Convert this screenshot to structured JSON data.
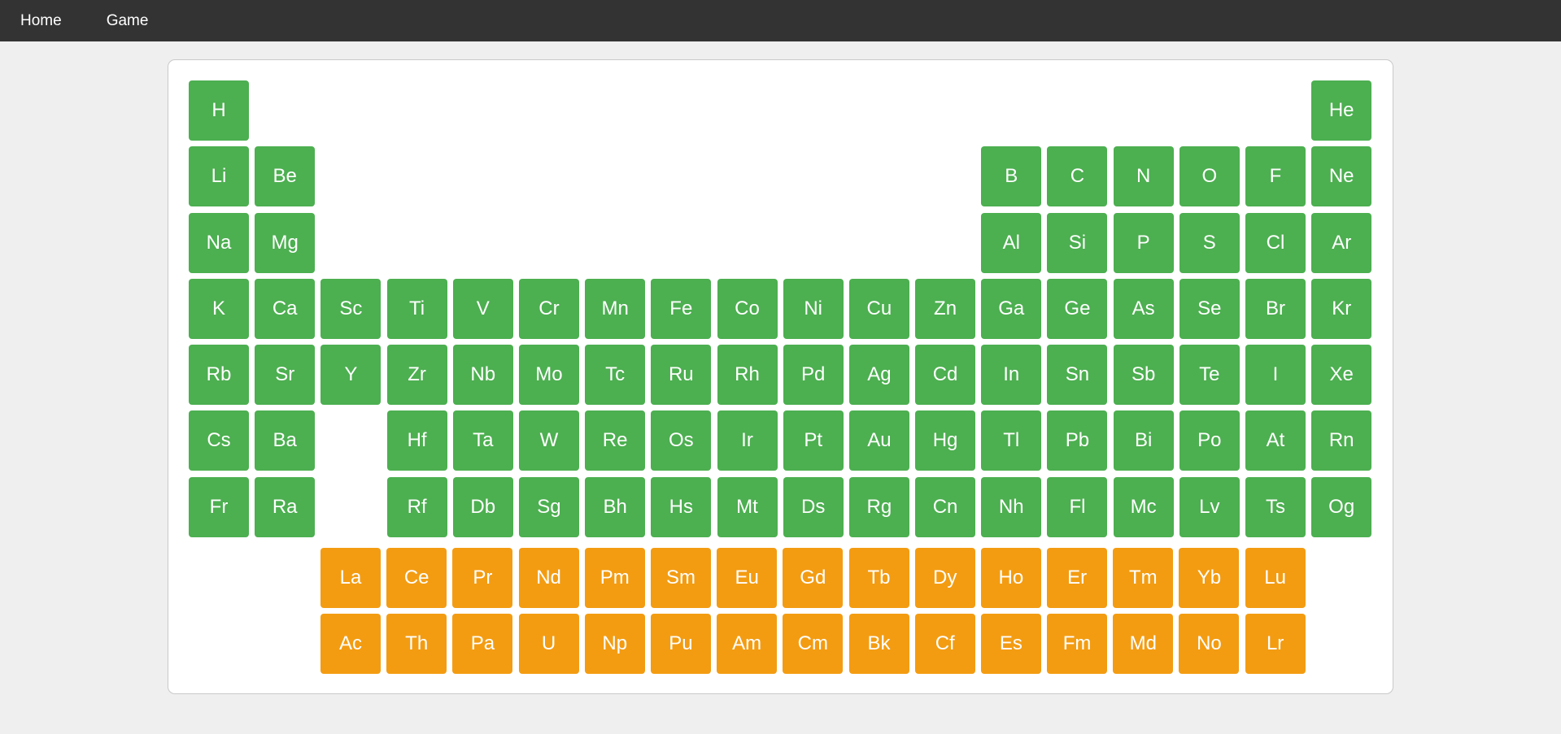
{
  "nav": {
    "items": [
      {
        "label": "Home"
      },
      {
        "label": "Game"
      }
    ]
  },
  "colors": {
    "main_block": "#4caf50",
    "f_block": "#f39c12",
    "navbar": "#333333"
  },
  "table": {
    "rows": [
      [
        "H",
        "",
        "",
        "",
        "",
        "",
        "",
        "",
        "",
        "",
        "",
        "",
        "",
        "",
        "",
        "",
        "",
        "He"
      ],
      [
        "Li",
        "Be",
        "",
        "",
        "",
        "",
        "",
        "",
        "",
        "",
        "",
        "",
        "B",
        "C",
        "N",
        "O",
        "F",
        "Ne"
      ],
      [
        "Na",
        "Mg",
        "",
        "",
        "",
        "",
        "",
        "",
        "",
        "",
        "",
        "",
        "Al",
        "Si",
        "P",
        "S",
        "Cl",
        "Ar"
      ],
      [
        "K",
        "Ca",
        "Sc",
        "Ti",
        "V",
        "Cr",
        "Mn",
        "Fe",
        "Co",
        "Ni",
        "Cu",
        "Zn",
        "Ga",
        "Ge",
        "As",
        "Se",
        "Br",
        "Kr"
      ],
      [
        "Rb",
        "Sr",
        "Y",
        "Zr",
        "Nb",
        "Mo",
        "Tc",
        "Ru",
        "Rh",
        "Pd",
        "Ag",
        "Cd",
        "In",
        "Sn",
        "Sb",
        "Te",
        "I",
        "Xe"
      ],
      [
        "Cs",
        "Ba",
        "",
        "Hf",
        "Ta",
        "W",
        "Re",
        "Os",
        "Ir",
        "Pt",
        "Au",
        "Hg",
        "Tl",
        "Pb",
        "Bi",
        "Po",
        "At",
        "Rn"
      ],
      [
        "Fr",
        "Ra",
        "",
        "Rf",
        "Db",
        "Sg",
        "Bh",
        "Hs",
        "Mt",
        "Ds",
        "Rg",
        "Cn",
        "Nh",
        "Fl",
        "Mc",
        "Lv",
        "Ts",
        "Og"
      ]
    ],
    "lanthanides": [
      "La",
      "Ce",
      "Pr",
      "Nd",
      "Pm",
      "Sm",
      "Eu",
      "Gd",
      "Tb",
      "Dy",
      "Ho",
      "Er",
      "Tm",
      "Yb",
      "Lu"
    ],
    "actinides": [
      "Ac",
      "Th",
      "Pa",
      "U",
      "Np",
      "Pu",
      "Am",
      "Cm",
      "Bk",
      "Cf",
      "Es",
      "Fm",
      "Md",
      "No",
      "Lr"
    ]
  }
}
